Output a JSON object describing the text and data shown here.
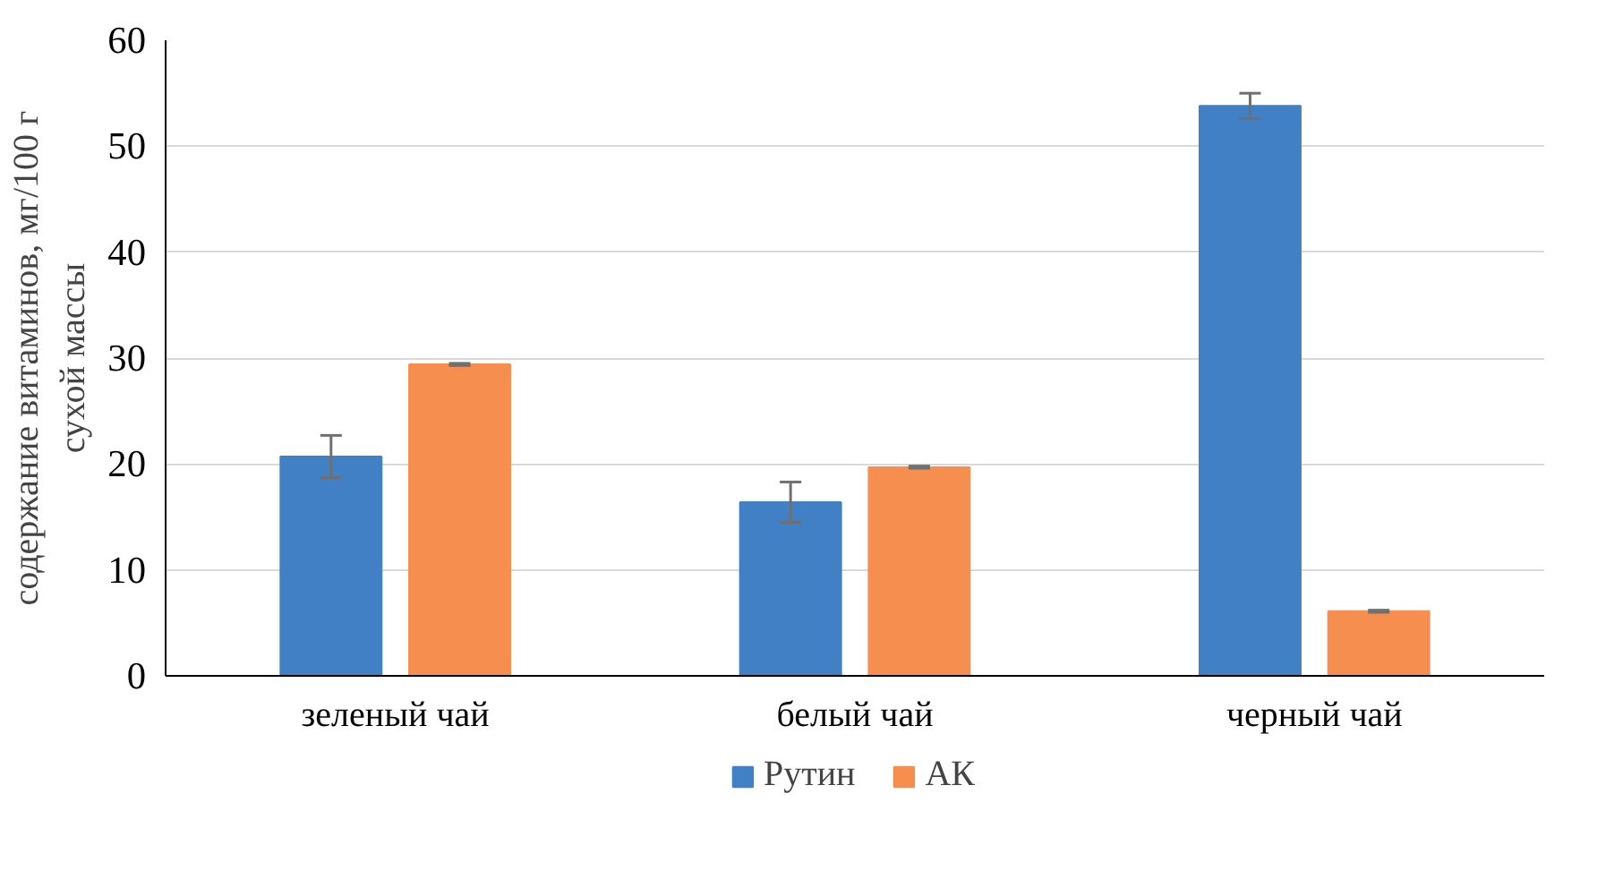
{
  "chart_data": {
    "type": "bar",
    "ylabel": "содержание витаминов, мг/100 г\nсухой массы",
    "categories": [
      "зеленый чай",
      "белый чай",
      "черный чай"
    ],
    "series": [
      {
        "name": "Рутин",
        "color": "#4180c4",
        "values": [
          20.7,
          16.4,
          53.8
        ],
        "errors": [
          2.0,
          1.9,
          1.2
        ]
      },
      {
        "name": "АК",
        "color": "#f68e4f",
        "values": [
          29.4,
          19.7,
          6.1
        ],
        "errors": [
          0.1,
          0.1,
          0.1
        ]
      }
    ],
    "ylim": [
      0,
      60
    ],
    "yticks": [
      0,
      10,
      20,
      30,
      40,
      50,
      60
    ],
    "grid": "y",
    "legend": "bottom"
  }
}
